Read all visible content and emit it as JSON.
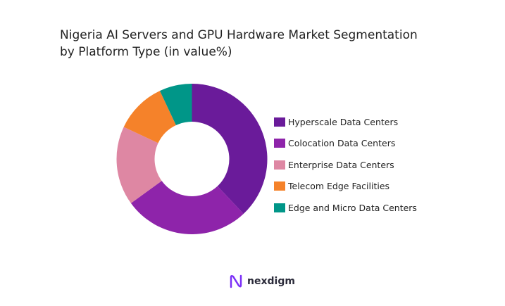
{
  "chart_data": {
    "type": "pie",
    "donut": true,
    "title": "Nigeria AI Servers and GPU Hardware Market Segmentation\n by Platform Type (in value%)",
    "categories": [
      "Hyperscale Data Centers",
      "Colocation Data Centers",
      "Enterprise Data Centers",
      "Telecom Edge Facilities",
      "Edge and Micro Data Centers"
    ],
    "values": [
      38,
      27,
      17,
      11,
      7
    ],
    "colors": [
      "#6a1b9a",
      "#8e24aa",
      "#de87a3",
      "#f5822a",
      "#009688"
    ],
    "legend_position": "right"
  },
  "logo": {
    "text": "nexdigm",
    "color": "#7b2ff7"
  }
}
